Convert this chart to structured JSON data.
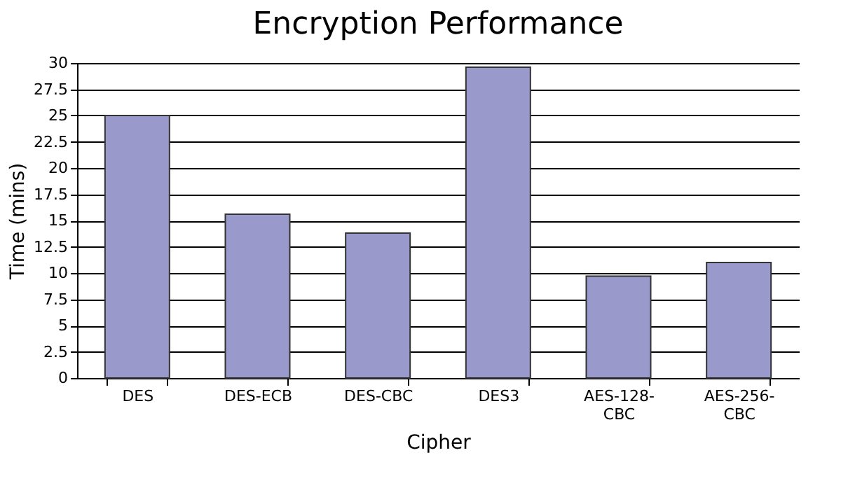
{
  "chart_data": {
    "type": "bar",
    "title": "Encryption Performance",
    "xlabel": "Cipher",
    "ylabel": "Time (mins)",
    "categories": [
      "DES",
      "DES-ECB",
      "DES-CBC",
      "DES3",
      "AES-128-CBC",
      "AES-256-CBC"
    ],
    "values": [
      25,
      15.6,
      13.8,
      29.6,
      9.7,
      11.0
    ],
    "color": "#9999cc",
    "ylim": [
      0,
      30
    ],
    "yticks": [
      0,
      2.5,
      5,
      7.5,
      10,
      12.5,
      15,
      17.5,
      20,
      22.5,
      25,
      27.5,
      30
    ],
    "grid": "y"
  }
}
